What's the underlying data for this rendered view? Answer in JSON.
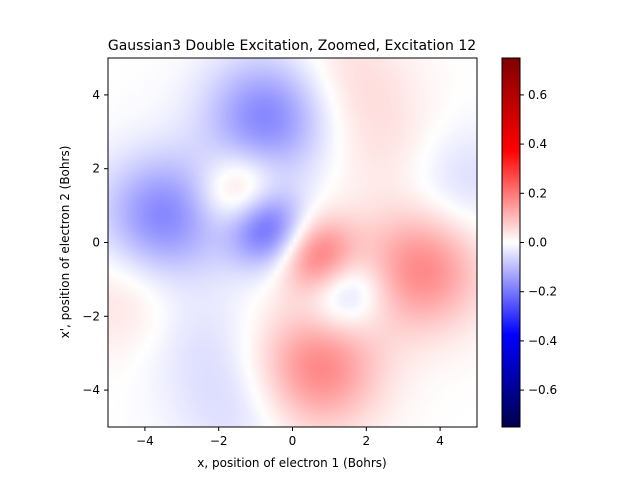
{
  "chart_data": {
    "type": "heatmap",
    "title": "Gaussian3 Double Excitation, Zoomed, Excitation 12",
    "xlabel": "x, position of electron 1 (Bohrs)",
    "ylabel": "x', position of electron 2 (Bohrs)",
    "xlim": [
      -5,
      5
    ],
    "ylim": [
      -5,
      5
    ],
    "x_ticks": [
      -4,
      -2,
      0,
      2,
      4
    ],
    "y_ticks": [
      -4,
      -2,
      0,
      2,
      4
    ],
    "x_tick_labels": [
      "−4",
      "−2",
      "0",
      "2",
      "4"
    ],
    "y_tick_labels": [
      "−4",
      "−2",
      "0",
      "2",
      "4"
    ],
    "colormap": "seismic",
    "colorbar": {
      "range": [
        -0.75,
        0.75
      ],
      "ticks": [
        0.6,
        0.4,
        0.2,
        0.0,
        -0.2,
        -0.4,
        -0.6
      ],
      "tick_labels": [
        "0.6",
        "0.4",
        "0.2",
        "0.0",
        "−0.2",
        "−0.4",
        "−0.6"
      ]
    },
    "features": [
      {
        "x": -0.7,
        "y": 0.4,
        "value": -0.24
      },
      {
        "x": 0.7,
        "y": -0.4,
        "value": 0.22
      },
      {
        "x": -1.4,
        "y": 1.3,
        "value": 0.14
      },
      {
        "x": 1.4,
        "y": -1.3,
        "value": -0.14
      },
      {
        "x": -3.5,
        "y": 0.7,
        "value": -0.18
      },
      {
        "x": 3.5,
        "y": -0.7,
        "value": 0.18
      },
      {
        "x": -0.7,
        "y": 3.4,
        "value": -0.18
      },
      {
        "x": 0.7,
        "y": -3.4,
        "value": 0.18
      },
      {
        "x": 2.6,
        "y": 2.6,
        "value": 0.04
      },
      {
        "x": -2.6,
        "y": -2.6,
        "value": -0.04
      },
      {
        "x": 4.5,
        "y": 1.5,
        "value": -0.06
      },
      {
        "x": -4.5,
        "y": -1.5,
        "value": 0.05
      },
      {
        "x": 1.5,
        "y": 4.5,
        "value": 0.05
      },
      {
        "x": -1.5,
        "y": -4.5,
        "value": -0.05
      }
    ]
  }
}
